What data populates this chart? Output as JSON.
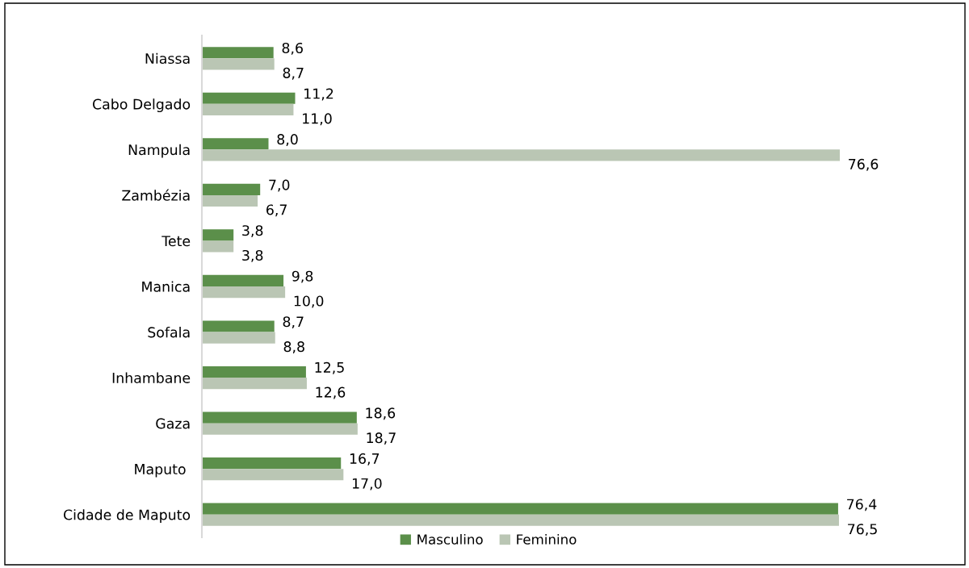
{
  "chart_data": {
    "type": "bar",
    "orientation": "horizontal",
    "categories": [
      "Niassa",
      "Cabo Delgado",
      "Nampula",
      "Zambézia",
      "Tete",
      "Manica",
      "Sofala",
      "Inhambane",
      "Gaza",
      "Maputo ",
      "Cidade de Maputo"
    ],
    "series": [
      {
        "name": "Masculino",
        "color": "#5b8f4a",
        "values": [
          8.6,
          11.2,
          8.0,
          7.0,
          3.8,
          9.8,
          8.7,
          12.5,
          18.6,
          16.7,
          76.4
        ],
        "value_labels": [
          "8,6",
          "11,2",
          "8,0",
          "7,0",
          "3,8",
          "9,8",
          "8,7",
          "12,5",
          "18,6",
          "16,7",
          "76,4"
        ]
      },
      {
        "name": "Feminino",
        "color": "#bac6b4",
        "values": [
          8.7,
          11.0,
          76.6,
          6.7,
          3.8,
          10.0,
          8.8,
          12.6,
          18.7,
          17.0,
          76.5
        ],
        "value_labels": [
          "8,7",
          "11,0",
          "76,6",
          "6,7",
          "3,8",
          "10,0",
          "8,8",
          "12,6",
          "18,7",
          "17,0",
          "76,5"
        ]
      }
    ],
    "legend": "bottom"
  }
}
